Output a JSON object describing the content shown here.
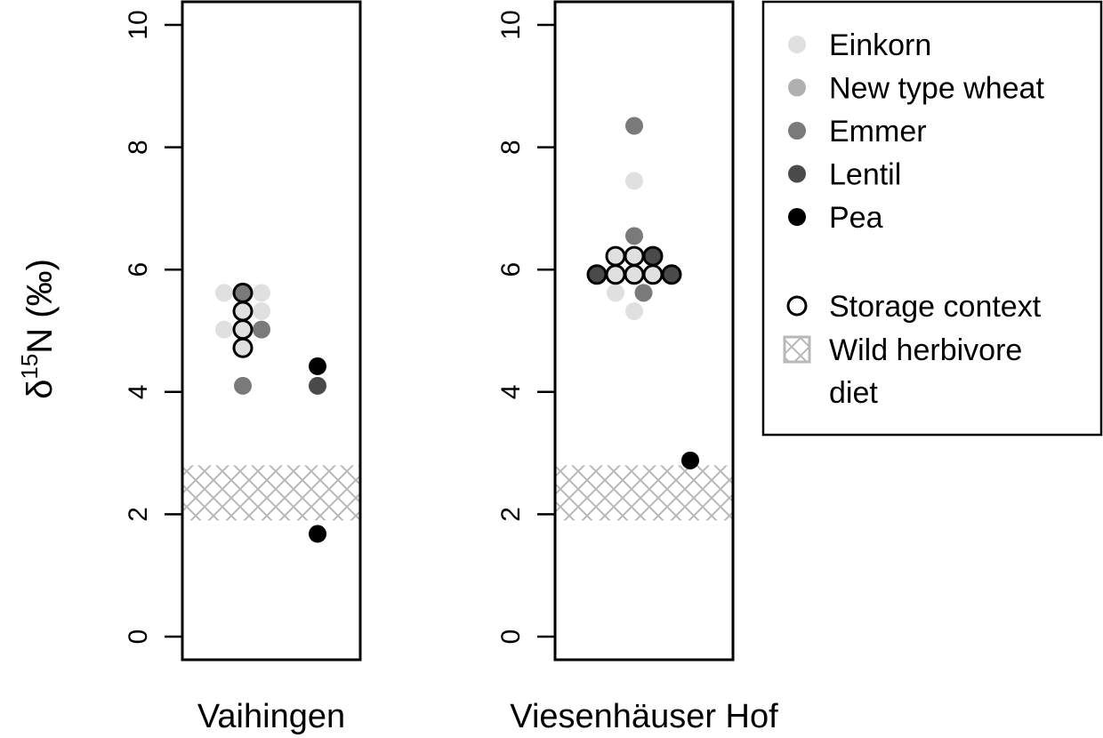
{
  "chart_data": {
    "type": "scatter",
    "ylabel": {
      "delta": "δ",
      "sup": "15",
      "rest": "N (‰)"
    },
    "ylim": [
      0,
      10
    ],
    "yticks": [
      "0",
      "2",
      "4",
      "6",
      "8",
      "10"
    ],
    "colors": {
      "Einkorn": "#e0e0e0",
      "New type wheat": "#b0b0b0",
      "Emmer": "#7a7a7a",
      "Lentil": "#4a4a4a",
      "Pea": "#000000",
      "band": "#b8b8b8"
    },
    "panels": [
      {
        "label": "Vaihingen",
        "herbivore_band": [
          1.9,
          2.8
        ],
        "points": [
          {
            "crop": "Einkorn",
            "x": 1,
            "y": 5.62,
            "storage": false
          },
          {
            "crop": "Einkorn",
            "x": 3,
            "y": 5.62,
            "storage": false
          },
          {
            "crop": "Einkorn",
            "x": 1,
            "y": 5.02,
            "storage": false
          },
          {
            "crop": "Einkorn",
            "x": 3,
            "y": 5.32,
            "storage": false
          },
          {
            "crop": "Emmer",
            "x": 3,
            "y": 5.02,
            "storage": false
          },
          {
            "crop": "Emmer",
            "x": 2,
            "y": 4.1,
            "storage": false
          },
          {
            "crop": "Emmer",
            "x": 2,
            "y": 5.62,
            "storage": true
          },
          {
            "crop": "Einkorn",
            "x": 2,
            "y": 5.32,
            "storage": true
          },
          {
            "crop": "Einkorn",
            "x": 2,
            "y": 5.02,
            "storage": true
          },
          {
            "crop": "Einkorn",
            "x": 2,
            "y": 4.72,
            "storage": true
          },
          {
            "crop": "Lentil",
            "x": 6,
            "y": 4.1,
            "storage": false
          },
          {
            "crop": "Pea",
            "x": 6,
            "y": 4.42,
            "storage": false
          },
          {
            "crop": "Pea",
            "x": 6,
            "y": 1.68,
            "storage": false
          }
        ]
      },
      {
        "label": "Viesenhäuser Hof",
        "herbivore_band": [
          1.9,
          2.8
        ],
        "points": [
          {
            "crop": "Emmer",
            "x": 3,
            "y": 8.35,
            "storage": false
          },
          {
            "crop": "Einkorn",
            "x": 3,
            "y": 7.45,
            "storage": false
          },
          {
            "crop": "Emmer",
            "x": 3,
            "y": 6.55,
            "storage": false
          },
          {
            "crop": "Einkorn",
            "x": 2,
            "y": 5.62,
            "storage": false
          },
          {
            "crop": "Einkorn",
            "x": 3,
            "y": 5.32,
            "storage": false
          },
          {
            "crop": "Emmer",
            "x": 3.5,
            "y": 5.62,
            "storage": false
          },
          {
            "crop": "Einkorn",
            "x": 2,
            "y": 6.22,
            "storage": true
          },
          {
            "crop": "Einkorn",
            "x": 3,
            "y": 6.22,
            "storage": true
          },
          {
            "crop": "Lentil",
            "x": 4,
            "y": 6.22,
            "storage": true
          },
          {
            "crop": "Lentil",
            "x": 1,
            "y": 5.92,
            "storage": true
          },
          {
            "crop": "Einkorn",
            "x": 2,
            "y": 5.92,
            "storage": true
          },
          {
            "crop": "Einkorn",
            "x": 3,
            "y": 5.92,
            "storage": true
          },
          {
            "crop": "Einkorn",
            "x": 4,
            "y": 5.92,
            "storage": true
          },
          {
            "crop": "Lentil",
            "x": 5,
            "y": 5.92,
            "storage": true
          },
          {
            "crop": "Pea",
            "x": 6,
            "y": 2.88,
            "storage": false
          }
        ]
      }
    ],
    "legend": {
      "placement": "right",
      "crop_entries": [
        "Einkorn",
        "New type wheat",
        "Emmer",
        "Lentil",
        "Pea"
      ],
      "storage_label": "Storage context",
      "herbivore_label_line1": "Wild herbivore",
      "herbivore_label_line2": "diet"
    }
  }
}
